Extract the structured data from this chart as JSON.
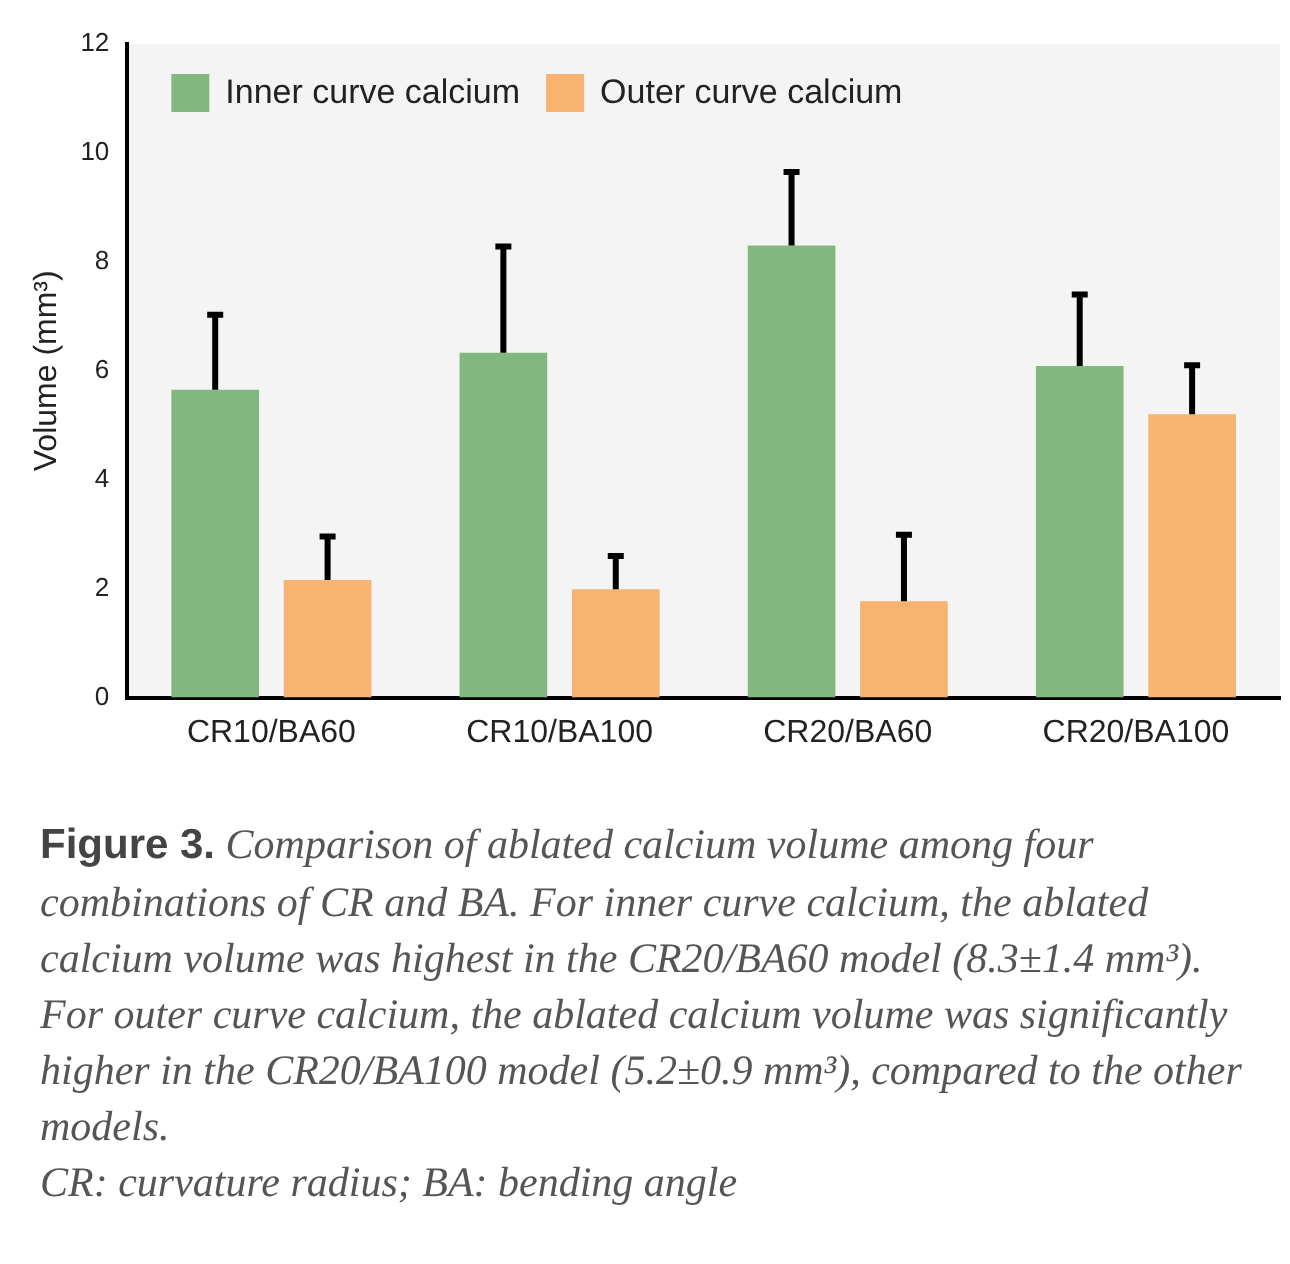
{
  "chart_data": {
    "type": "bar",
    "categories": [
      "CR10/BA60",
      "CR10/BA100",
      "CR20/BA60",
      "CR20/BA100"
    ],
    "ylabel": "Volume (mm³)",
    "series": [
      {
        "name": "Inner curve calcium",
        "color": "#82b780",
        "values": [
          5.65,
          6.33,
          8.3,
          6.09
        ],
        "errors": [
          [
            5.65,
            7.03
          ],
          [
            6.33,
            8.28
          ],
          [
            8.3,
            9.65
          ],
          [
            6.09,
            7.4
          ]
        ]
      },
      {
        "name": "Outer curve calcium",
        "color": "#f7b36f",
        "values": [
          2.16,
          1.99,
          1.77,
          5.2
        ],
        "errors": [
          [
            2.16,
            2.96
          ],
          [
            1.99,
            2.6
          ],
          [
            1.77,
            2.99
          ],
          [
            5.2,
            6.1
          ]
        ]
      }
    ],
    "ylim": [
      0,
      12
    ],
    "yticks": [
      0,
      2,
      4,
      6,
      8,
      10,
      12
    ],
    "grid": false,
    "legend": "top left",
    "annotations": [
      "Figure 3.",
      "Comparison of ablated calcium volume among four combinations of CR and BA. For inner curve calcium, the ablated calcium volume was highest in the CR20/BA60 model (8.3±1.4 mm³). For outer curve calcium, the ablated calcium volume was significantly higher in the CR20/BA100 model (5.2±0.9 mm³), compared to the other models.",
      "CR: curvature radius; BA: bending angle"
    ]
  }
}
